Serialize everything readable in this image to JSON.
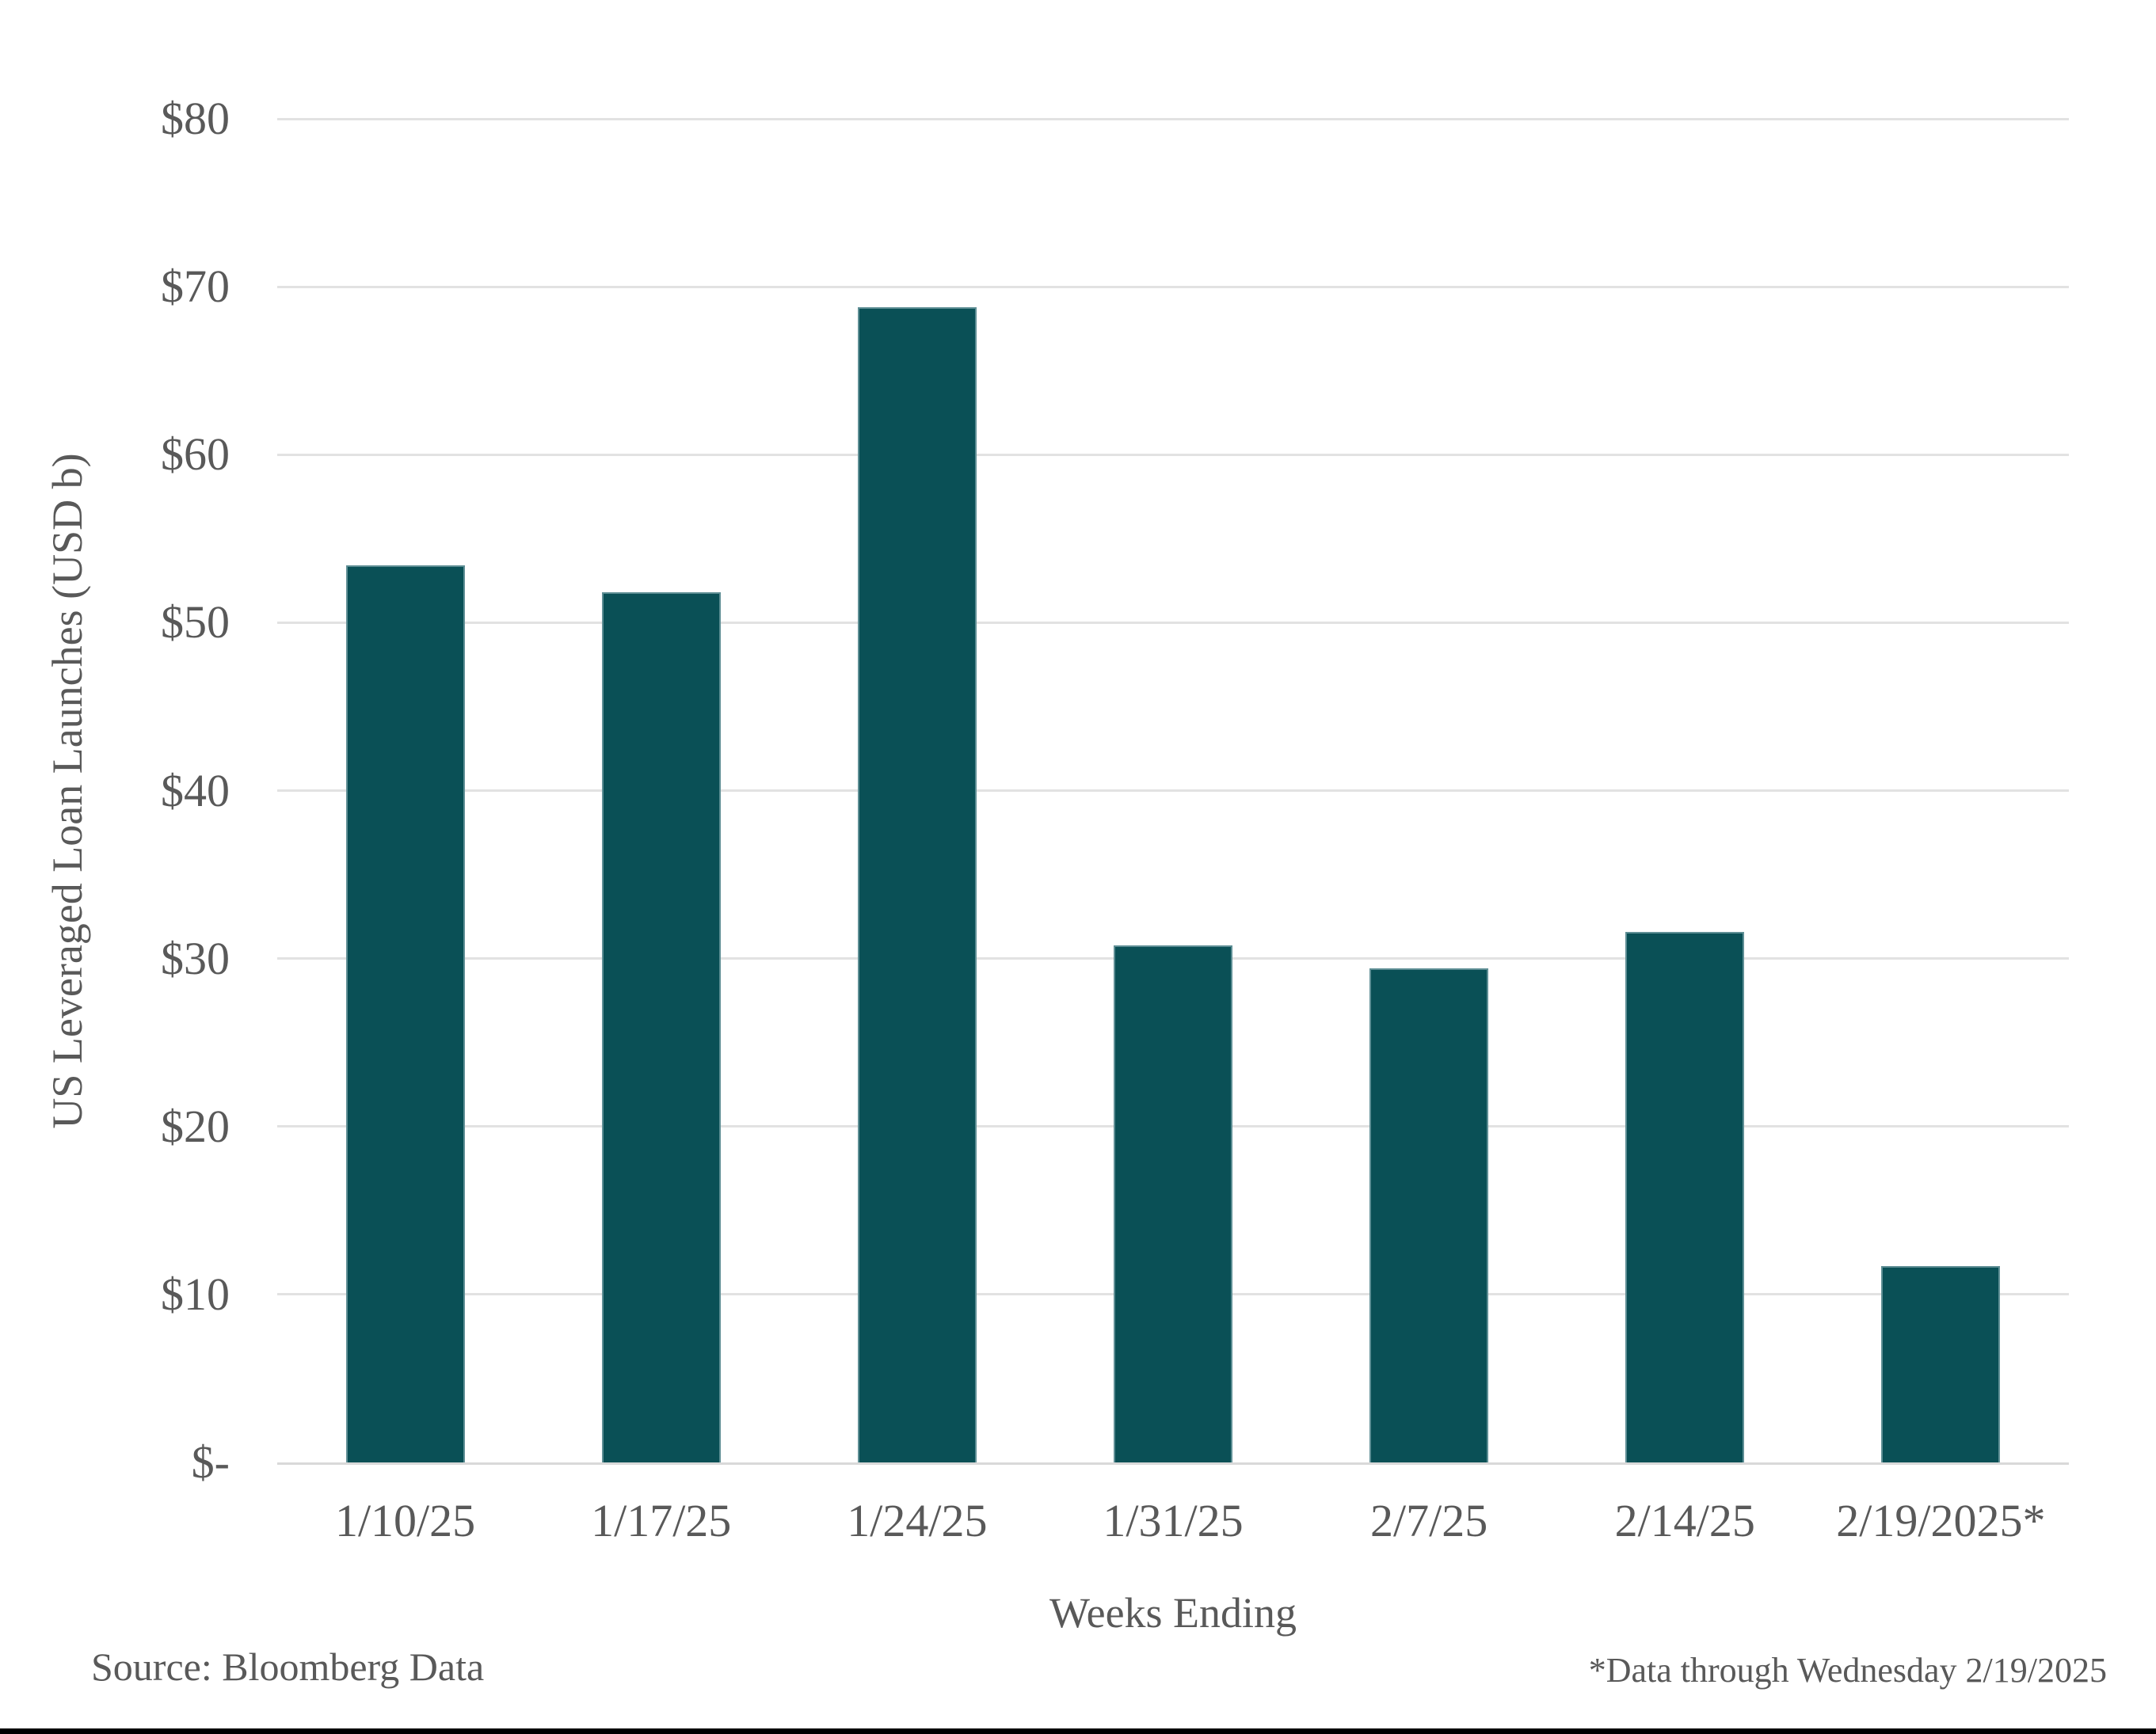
{
  "chart_data": {
    "type": "bar",
    "title": "",
    "categories": [
      "1/10/25",
      "1/17/25",
      "1/24/25",
      "1/31/25",
      "2/7/25",
      "2/14/25",
      "2/19/2025*"
    ],
    "values": [
      53.4,
      51.8,
      68.8,
      30.8,
      29.4,
      31.6,
      11.7
    ],
    "series_name": "US Leveraged Loan Launches",
    "xlabel": "Weeks Ending",
    "ylabel": "US Leveraged Loan Launches (USD b)",
    "ylim": [
      0,
      80
    ],
    "yticks": [
      {
        "value": 0,
        "label": "$-"
      },
      {
        "value": 10,
        "label": "$10"
      },
      {
        "value": 20,
        "label": "$20"
      },
      {
        "value": 30,
        "label": "$30"
      },
      {
        "value": 40,
        "label": "$40"
      },
      {
        "value": 50,
        "label": "$50"
      },
      {
        "value": 60,
        "label": "$60"
      },
      {
        "value": 70,
        "label": "$70"
      },
      {
        "value": 80,
        "label": "$80"
      }
    ],
    "grid": "horizontal",
    "legend": "none",
    "bar_color": "#0a5056",
    "gridline_color": "#e2e2e2",
    "text_color": "#595959"
  },
  "annotations": {
    "source": "Source: Bloomberg Data",
    "footnote": "*Data through Wednesday 2/19/2025"
  }
}
